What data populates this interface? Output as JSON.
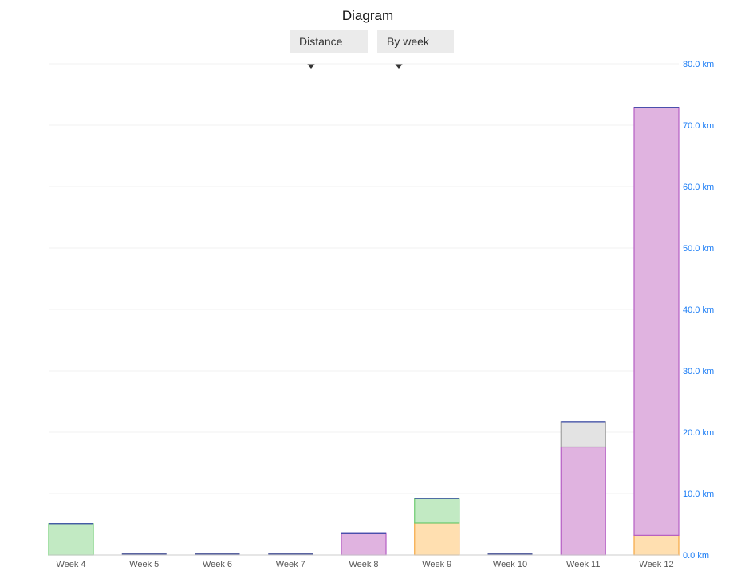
{
  "title": "Diagram",
  "controls": {
    "metric": "Distance",
    "grouping": "By week"
  },
  "chart_data": {
    "type": "bar",
    "stacked": true,
    "categories": [
      "Week 4",
      "Week 5",
      "Week 6",
      "Week 7",
      "Week 8",
      "Week 9",
      "Week 10",
      "Week 11",
      "Week 12"
    ],
    "series": [
      {
        "color": "#ffdfb0",
        "stroke": "#f5a742",
        "values": [
          0,
          0,
          0,
          0,
          0,
          5.2,
          0,
          0,
          3.2
        ]
      },
      {
        "color": "#e0b3e0",
        "stroke": "#b55ec4",
        "values": [
          0,
          0,
          0,
          0,
          3.6,
          0,
          0,
          17.6,
          69.7
        ]
      },
      {
        "color": "#c2eac3",
        "stroke": "#6bcb6e",
        "values": [
          5.1,
          0,
          0,
          0,
          0,
          4.0,
          0,
          0,
          0
        ]
      },
      {
        "color": "#e3e3e3",
        "stroke": "#a0a0a0",
        "values": [
          0,
          0,
          0,
          0,
          0,
          0,
          0,
          4.1,
          0
        ]
      }
    ],
    "ylim": [
      0,
      80
    ],
    "yticks": [
      "0.0 km",
      "10.0 km",
      "20.0 km",
      "30.0 km",
      "40.0 km",
      "50.0 km",
      "60.0 km",
      "70.0 km",
      "80.0 km"
    ],
    "y_axis_position": "right",
    "grid": true,
    "legend": "none",
    "tick_color": "#1a7cf5"
  }
}
